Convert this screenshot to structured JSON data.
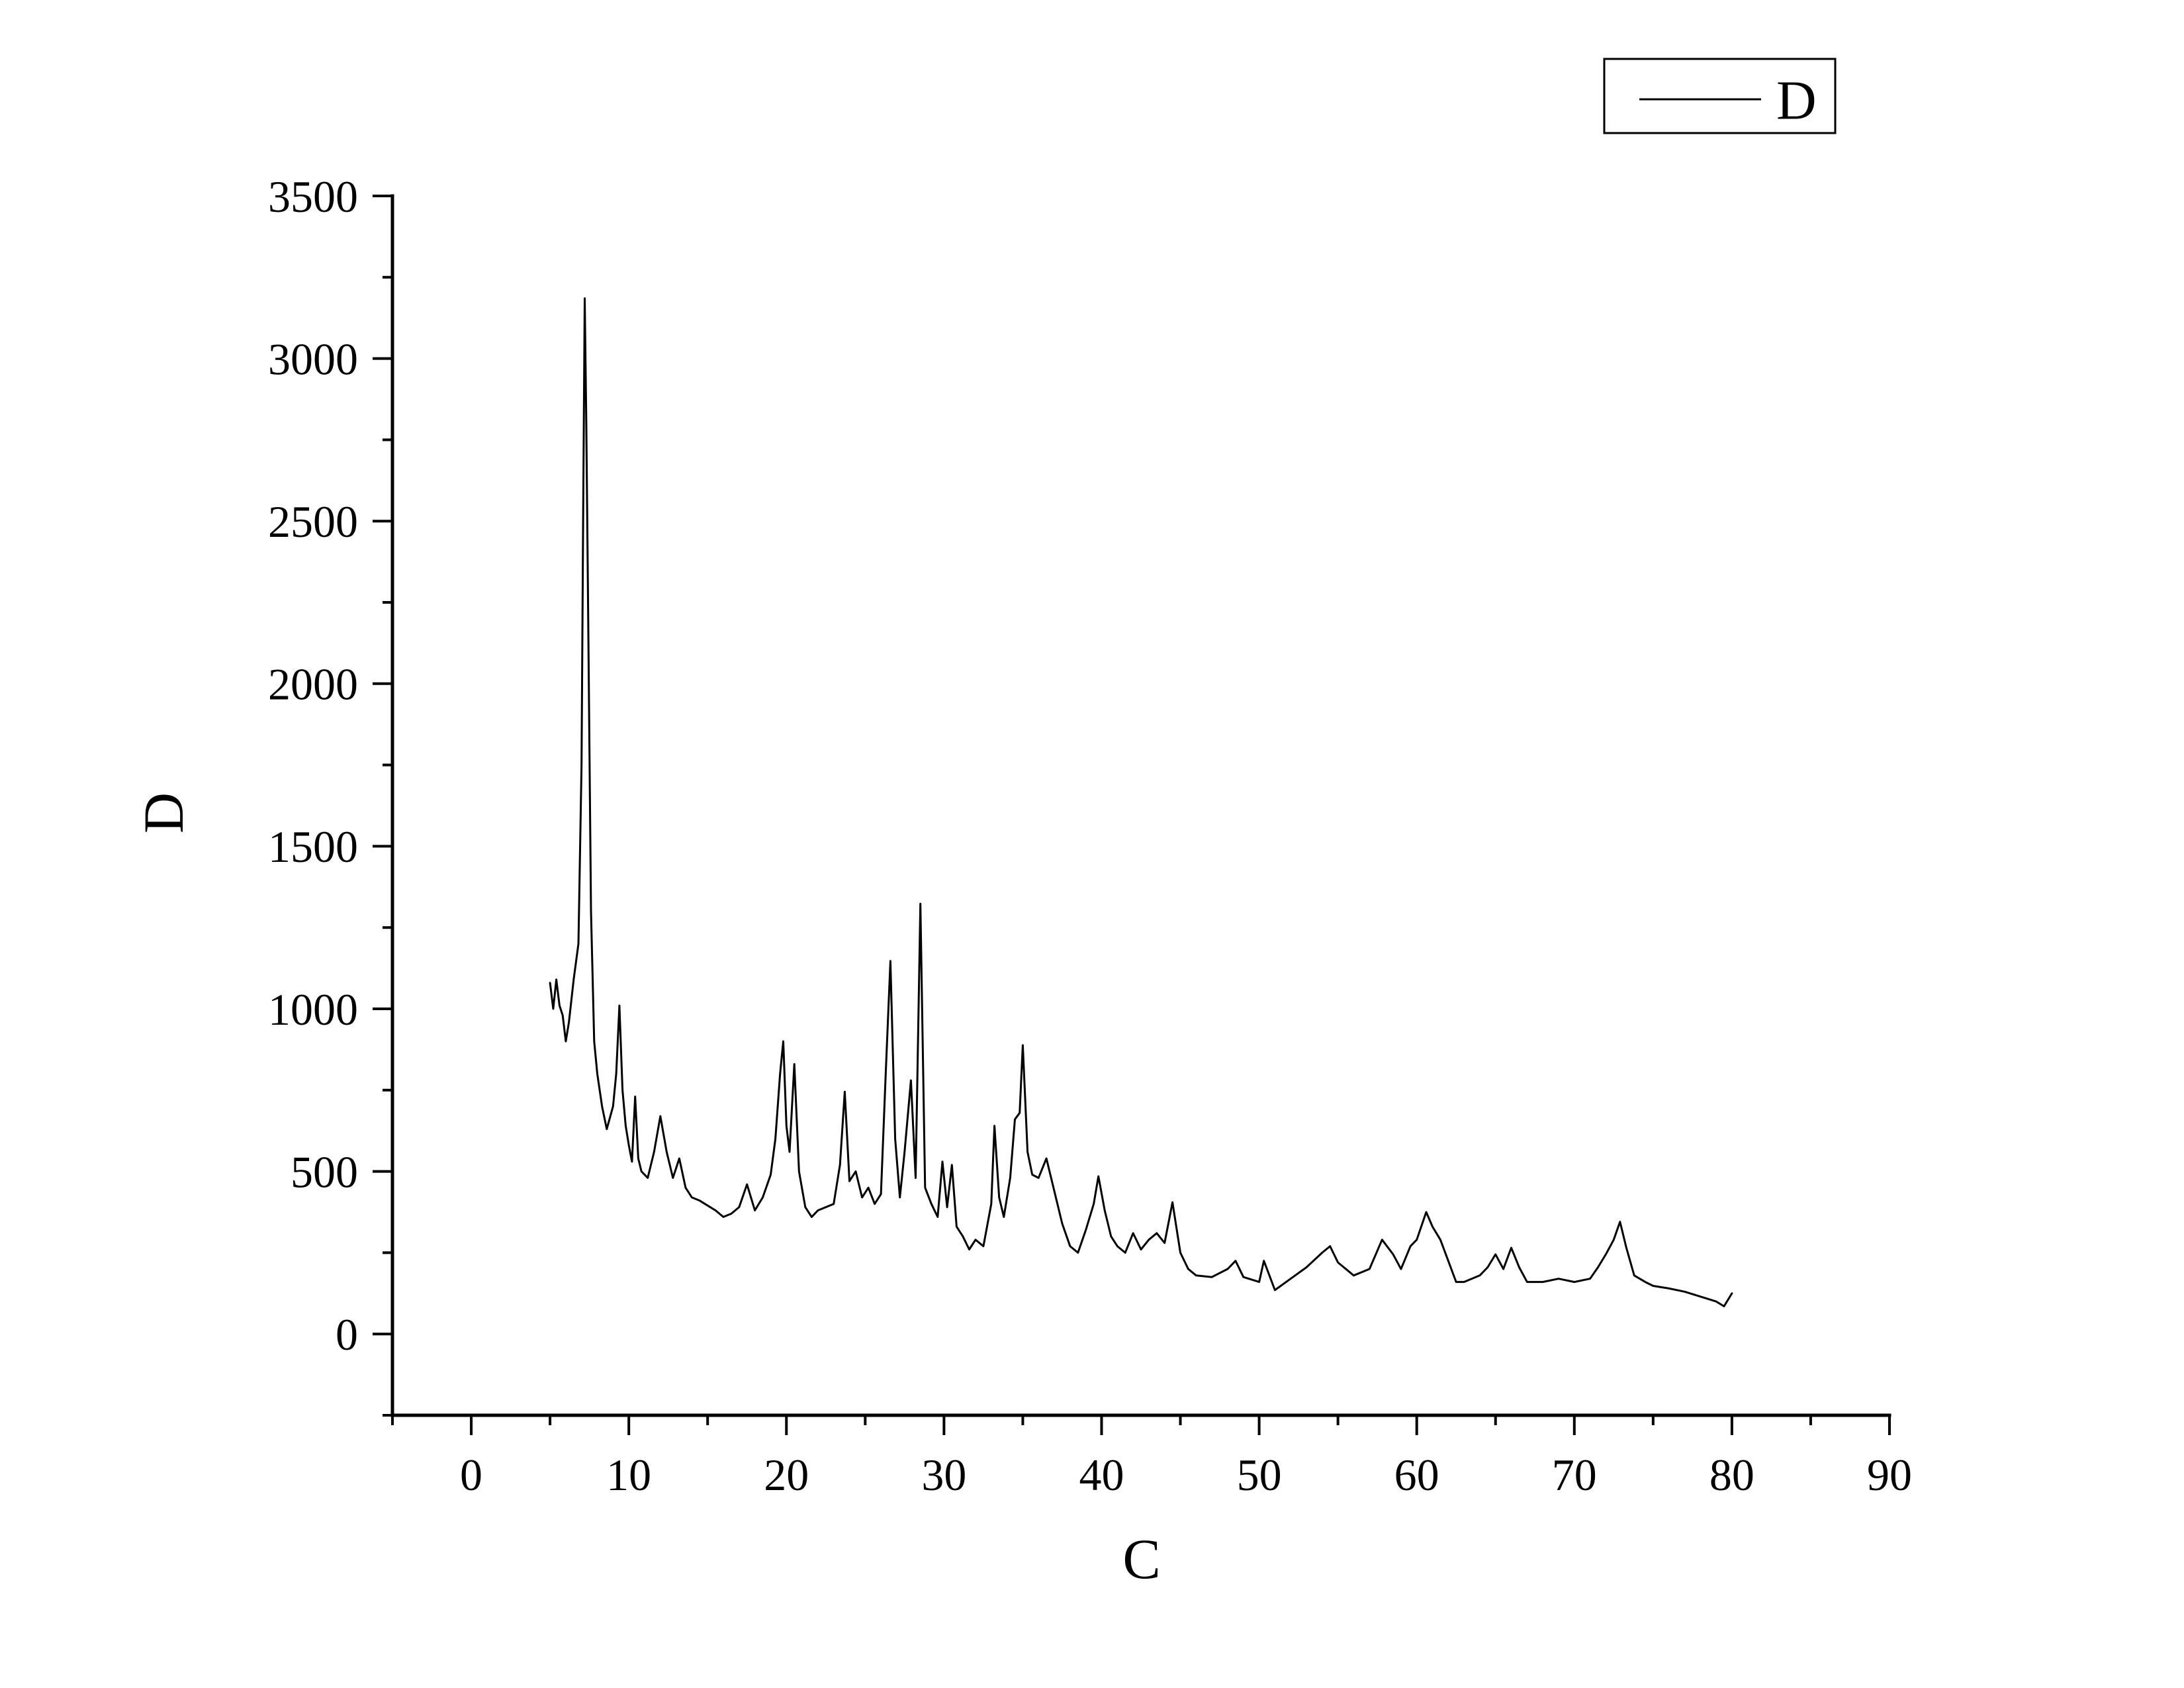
{
  "chart_data": {
    "type": "line",
    "title": "",
    "xlabel": "C",
    "ylabel": "D",
    "xlim": [
      -5,
      90
    ],
    "ylim": [
      -250,
      3500
    ],
    "xticks": [
      0,
      10,
      20,
      30,
      40,
      50,
      60,
      70,
      80,
      90
    ],
    "yticks": [
      0,
      500,
      1000,
      1500,
      2000,
      2500,
      3000,
      3500
    ],
    "grid": false,
    "legend_position": "top-right",
    "series": [
      {
        "name": "D",
        "color": "#000000",
        "points": [
          [
            5.0,
            1080
          ],
          [
            5.2,
            1000
          ],
          [
            5.4,
            1090
          ],
          [
            5.6,
            1010
          ],
          [
            5.8,
            980
          ],
          [
            6.0,
            900
          ],
          [
            6.2,
            960
          ],
          [
            6.5,
            1090
          ],
          [
            6.8,
            1200
          ],
          [
            7.0,
            1750
          ],
          [
            7.1,
            2500
          ],
          [
            7.2,
            3185
          ],
          [
            7.3,
            2800
          ],
          [
            7.4,
            2300
          ],
          [
            7.6,
            1300
          ],
          [
            7.8,
            900
          ],
          [
            8.0,
            800
          ],
          [
            8.3,
            700
          ],
          [
            8.6,
            630
          ],
          [
            9.0,
            700
          ],
          [
            9.2,
            800
          ],
          [
            9.4,
            1010
          ],
          [
            9.6,
            750
          ],
          [
            9.8,
            640
          ],
          [
            10.0,
            580
          ],
          [
            10.2,
            530
          ],
          [
            10.4,
            730
          ],
          [
            10.6,
            540
          ],
          [
            10.8,
            500
          ],
          [
            11.2,
            480
          ],
          [
            11.6,
            560
          ],
          [
            12.0,
            670
          ],
          [
            12.4,
            560
          ],
          [
            12.8,
            480
          ],
          [
            13.2,
            540
          ],
          [
            13.6,
            450
          ],
          [
            14.0,
            420
          ],
          [
            14.5,
            410
          ],
          [
            15.0,
            395
          ],
          [
            15.5,
            380
          ],
          [
            16.0,
            360
          ],
          [
            16.5,
            370
          ],
          [
            17.0,
            390
          ],
          [
            17.5,
            460
          ],
          [
            18.0,
            380
          ],
          [
            18.5,
            420
          ],
          [
            19.0,
            490
          ],
          [
            19.3,
            600
          ],
          [
            19.6,
            800
          ],
          [
            19.8,
            900
          ],
          [
            20.0,
            640
          ],
          [
            20.2,
            560
          ],
          [
            20.5,
            830
          ],
          [
            20.8,
            500
          ],
          [
            21.2,
            390
          ],
          [
            21.6,
            360
          ],
          [
            22.0,
            380
          ],
          [
            22.5,
            390
          ],
          [
            23.0,
            400
          ],
          [
            23.4,
            520
          ],
          [
            23.7,
            745
          ],
          [
            24.0,
            470
          ],
          [
            24.4,
            500
          ],
          [
            24.8,
            420
          ],
          [
            25.2,
            450
          ],
          [
            25.6,
            400
          ],
          [
            26.0,
            430
          ],
          [
            26.3,
            800
          ],
          [
            26.6,
            1147
          ],
          [
            26.9,
            600
          ],
          [
            27.2,
            420
          ],
          [
            27.5,
            560
          ],
          [
            27.9,
            780
          ],
          [
            28.2,
            480
          ],
          [
            28.5,
            1323
          ],
          [
            28.8,
            450
          ],
          [
            29.2,
            400
          ],
          [
            29.6,
            360
          ],
          [
            29.9,
            530
          ],
          [
            30.2,
            390
          ],
          [
            30.5,
            520
          ],
          [
            30.8,
            330
          ],
          [
            31.2,
            300
          ],
          [
            31.6,
            260
          ],
          [
            32.0,
            290
          ],
          [
            32.5,
            270
          ],
          [
            33.0,
            400
          ],
          [
            33.2,
            640
          ],
          [
            33.5,
            420
          ],
          [
            33.8,
            360
          ],
          [
            34.2,
            480
          ],
          [
            34.5,
            660
          ],
          [
            34.8,
            680
          ],
          [
            35.0,
            888
          ],
          [
            35.3,
            560
          ],
          [
            35.6,
            490
          ],
          [
            36.0,
            480
          ],
          [
            36.5,
            540
          ],
          [
            37.0,
            440
          ],
          [
            37.5,
            340
          ],
          [
            38.0,
            270
          ],
          [
            38.5,
            250
          ],
          [
            39.0,
            320
          ],
          [
            39.5,
            400
          ],
          [
            39.8,
            485
          ],
          [
            40.2,
            380
          ],
          [
            40.6,
            300
          ],
          [
            41.0,
            270
          ],
          [
            41.5,
            250
          ],
          [
            42.0,
            310
          ],
          [
            42.5,
            260
          ],
          [
            43.0,
            290
          ],
          [
            43.5,
            310
          ],
          [
            44.0,
            280
          ],
          [
            44.5,
            405
          ],
          [
            45.0,
            250
          ],
          [
            45.5,
            200
          ],
          [
            46.0,
            180
          ],
          [
            47.0,
            175
          ],
          [
            48.0,
            200
          ],
          [
            48.5,
            225
          ],
          [
            49.0,
            175
          ],
          [
            50.0,
            160
          ],
          [
            50.3,
            225
          ],
          [
            51.0,
            135
          ],
          [
            52.0,
            170
          ],
          [
            53.0,
            205
          ],
          [
            54.0,
            250
          ],
          [
            54.5,
            270
          ],
          [
            55.0,
            220
          ],
          [
            56.0,
            180
          ],
          [
            57.0,
            200
          ],
          [
            57.8,
            290
          ],
          [
            58.5,
            245
          ],
          [
            59.0,
            200
          ],
          [
            59.6,
            270
          ],
          [
            60.0,
            290
          ],
          [
            60.6,
            375
          ],
          [
            61.0,
            330
          ],
          [
            61.5,
            290
          ],
          [
            62.0,
            225
          ],
          [
            62.5,
            160
          ],
          [
            63.0,
            160
          ],
          [
            64.0,
            180
          ],
          [
            64.5,
            205
          ],
          [
            65.0,
            245
          ],
          [
            65.5,
            200
          ],
          [
            66.0,
            265
          ],
          [
            66.5,
            205
          ],
          [
            67.0,
            160
          ],
          [
            68.0,
            160
          ],
          [
            69.0,
            170
          ],
          [
            70.0,
            160
          ],
          [
            71.0,
            170
          ],
          [
            71.5,
            205
          ],
          [
            72.0,
            245
          ],
          [
            72.5,
            290
          ],
          [
            72.9,
            345
          ],
          [
            73.3,
            265
          ],
          [
            73.8,
            180
          ],
          [
            74.5,
            160
          ],
          [
            75.0,
            148
          ],
          [
            76.0,
            140
          ],
          [
            77.0,
            130
          ],
          [
            78.0,
            115
          ],
          [
            79.0,
            100
          ],
          [
            79.5,
            85
          ],
          [
            80.0,
            125
          ]
        ]
      }
    ]
  }
}
